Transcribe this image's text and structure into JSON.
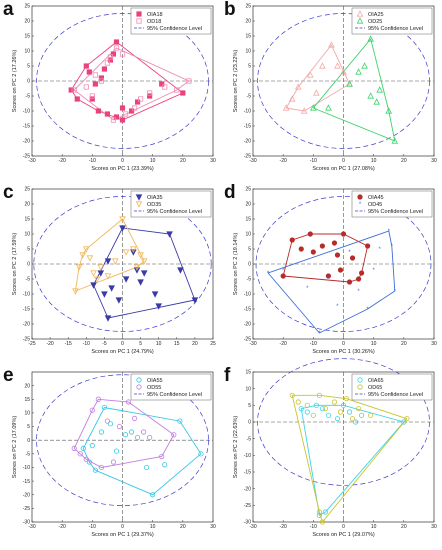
{
  "chart_data": [
    {
      "panel_label": "a",
      "type": "scatter",
      "xlabel": "Scores on PC 1 (23.39%)",
      "ylabel": "Scores on PC 2 (17.26%)",
      "xlim": [
        -30,
        30
      ],
      "ylim": [
        -25,
        25
      ],
      "xticks": [
        -30,
        -20,
        -10,
        0,
        10,
        20,
        30
      ],
      "yticks": [
        -25,
        -20,
        -15,
        -10,
        -5,
        0,
        5,
        10,
        15,
        20,
        25
      ],
      "ellipse": {
        "label": "95% Confidence Level",
        "rx": 28.5,
        "ry": 22.5
      },
      "legend_position": "top-right",
      "series": [
        {
          "name": "OIA18",
          "color": "#e8437e",
          "marker": "square-filled",
          "points": [
            [
              -17,
              -3
            ],
            [
              -15,
              -6
            ],
            [
              -12,
              5
            ],
            [
              -11,
              3
            ],
            [
              -10,
              -6
            ],
            [
              -9,
              -1
            ],
            [
              -8,
              -10
            ],
            [
              -5,
              -11
            ],
            [
              -4,
              7
            ],
            [
              -3,
              9
            ],
            [
              -2,
              13
            ],
            [
              -2,
              -12
            ],
            [
              0,
              -13
            ],
            [
              0,
              -9
            ],
            [
              3,
              -10
            ],
            [
              5,
              -7
            ],
            [
              9,
              -5
            ],
            [
              13,
              -1
            ],
            [
              20,
              -4
            ],
            [
              -6,
              4
            ],
            [
              -7,
              1
            ]
          ]
        },
        {
          "name": "OD18",
          "color": "#f08cb4",
          "marker": "square-open",
          "points": [
            [
              -16,
              -3
            ],
            [
              -12,
              -2
            ],
            [
              -10,
              -5
            ],
            [
              -7,
              0
            ],
            [
              -5,
              6
            ],
            [
              -4,
              8
            ],
            [
              -2,
              11
            ],
            [
              0,
              9
            ],
            [
              1,
              -11
            ],
            [
              4,
              -9
            ],
            [
              6,
              -6
            ],
            [
              9,
              -4
            ],
            [
              14,
              -2
            ],
            [
              18,
              -3
            ],
            [
              22,
              0
            ],
            [
              -3,
              -13
            ],
            [
              -9,
              2
            ]
          ]
        }
      ]
    },
    {
      "panel_label": "b",
      "type": "scatter",
      "xlabel": "Scores on PC 1 (27.08%)",
      "ylabel": "Scores on PC 2 (23.22%)",
      "xlim": [
        -30,
        30
      ],
      "ylim": [
        -25,
        25
      ],
      "xticks": [
        -30,
        -20,
        -10,
        0,
        10,
        20,
        30
      ],
      "yticks": [
        -25,
        -20,
        -15,
        -10,
        -5,
        0,
        5,
        10,
        15,
        20,
        25
      ],
      "ellipse": {
        "label": "95% Confidence Level",
        "rx": 28.5,
        "ry": 22.5
      },
      "legend_position": "top-right",
      "series": [
        {
          "name": "OIA25",
          "color": "#f2a9a9",
          "marker": "triangle-open",
          "points": [
            [
              -19,
              -9
            ],
            [
              -17,
              -6
            ],
            [
              -13,
              -10
            ],
            [
              -11,
              2
            ],
            [
              -7,
              5
            ],
            [
              -4,
              12
            ],
            [
              -2,
              5
            ],
            [
              0,
              3
            ],
            [
              2,
              -1
            ],
            [
              -9,
              -4
            ],
            [
              -15,
              -2
            ]
          ]
        },
        {
          "name": "OD25",
          "color": "#3dd36b",
          "marker": "triangle-open",
          "points": [
            [
              -10,
              -9
            ],
            [
              2,
              -1
            ],
            [
              5,
              3
            ],
            [
              7,
              5
            ],
            [
              9,
              -5
            ],
            [
              11,
              -7
            ],
            [
              12,
              -3
            ],
            [
              15,
              -10
            ],
            [
              17,
              -20
            ],
            [
              9,
              14
            ],
            [
              -5,
              -9
            ]
          ]
        }
      ]
    },
    {
      "panel_label": "c",
      "type": "scatter",
      "xlabel": "Scores on PC 1 (24.79%)",
      "ylabel": "Scores on PC 2 (17.59%)",
      "xlim": [
        -25,
        25
      ],
      "ylim": [
        -25,
        25
      ],
      "xticks": [
        -25,
        -20,
        -15,
        -10,
        -5,
        0,
        5,
        10,
        15,
        20,
        25
      ],
      "yticks": [
        -25,
        -20,
        -15,
        -10,
        -5,
        0,
        5,
        10,
        15,
        20,
        25
      ],
      "ellipse": {
        "label": "95% Confidence Level",
        "rx": 24.5,
        "ry": 22.5
      },
      "legend_position": "top-right",
      "series": [
        {
          "name": "OIA35",
          "color": "#3a3aa8",
          "marker": "triangle-down-filled",
          "points": [
            [
              -8,
              -7
            ],
            [
              -6,
              -3
            ],
            [
              -5,
              -10
            ],
            [
              -4,
              1
            ],
            [
              -3,
              -8
            ],
            [
              0,
              12
            ],
            [
              1,
              -5
            ],
            [
              3,
              4
            ],
            [
              4,
              -2
            ],
            [
              5,
              -6
            ],
            [
              6,
              -3
            ],
            [
              9,
              -10
            ],
            [
              10,
              -14
            ],
            [
              13,
              10
            ],
            [
              16,
              -2
            ],
            [
              20,
              -12
            ],
            [
              -4,
              -18
            ],
            [
              -1,
              -12
            ]
          ]
        },
        {
          "name": "OD35",
          "color": "#f0b85c",
          "marker": "triangle-down-open",
          "points": [
            [
              -13,
              -9
            ],
            [
              -12,
              -1
            ],
            [
              -10,
              5
            ],
            [
              -9,
              2
            ],
            [
              -8,
              -3
            ],
            [
              -7,
              -5
            ],
            [
              -4,
              -4
            ],
            [
              -2,
              1
            ],
            [
              0,
              15
            ],
            [
              1,
              4
            ],
            [
              3,
              5
            ],
            [
              4,
              -1
            ],
            [
              5,
              3
            ],
            [
              6,
              1
            ],
            [
              -11,
              3
            ],
            [
              -6,
              -1
            ]
          ]
        }
      ]
    },
    {
      "panel_label": "d",
      "type": "scatter",
      "xlabel": "Scores on PC 1 (30.26%)",
      "ylabel": "Scores on PC 2 (19.14%)",
      "xlim": [
        -30,
        30
      ],
      "ylim": [
        -25,
        25
      ],
      "xticks": [
        -30,
        -20,
        -10,
        0,
        10,
        20,
        30
      ],
      "yticks": [
        -25,
        -20,
        -15,
        -10,
        -5,
        0,
        5,
        10,
        15,
        20,
        25
      ],
      "ellipse": {
        "label": "95% Confidence Level",
        "rx": 29,
        "ry": 22.5
      },
      "legend_position": "top-right",
      "series": [
        {
          "name": "OIA45",
          "color": "#b82b2b",
          "marker": "circle-filled",
          "points": [
            [
              -20,
              -4
            ],
            [
              -17,
              8
            ],
            [
              -11,
              10
            ],
            [
              -10,
              4
            ],
            [
              -7,
              6
            ],
            [
              -5,
              -4
            ],
            [
              -3,
              7
            ],
            [
              -1,
              -2
            ],
            [
              0,
              10
            ],
            [
              2,
              -6
            ],
            [
              3,
              2
            ],
            [
              5,
              -5
            ],
            [
              6,
              -3
            ],
            [
              8,
              6
            ],
            [
              -14,
              5
            ],
            [
              -2,
              3
            ]
          ]
        },
        {
          "name": "OD45",
          "color": "#3b6fd8",
          "marker": "star",
          "points": [
            [
              -25,
              -3
            ],
            [
              -20,
              -2
            ],
            [
              -12,
              -8
            ],
            [
              -8,
              -23
            ],
            [
              -2,
              -14
            ],
            [
              2,
              4
            ],
            [
              5,
              -9
            ],
            [
              8,
              -15
            ],
            [
              10,
              -2
            ],
            [
              12,
              5
            ],
            [
              15,
              11
            ],
            [
              16,
              6
            ],
            [
              17,
              -9
            ],
            [
              -5,
              -5
            ]
          ]
        }
      ]
    },
    {
      "panel_label": "e",
      "type": "scatter",
      "xlabel": "Scores on PC 1 (29.37%)",
      "ylabel": "Scores on PC 2 (17.09%)",
      "xlim": [
        -30,
        30
      ],
      "ylim": [
        -30,
        25
      ],
      "xticks": [
        -30,
        -20,
        -10,
        0,
        10,
        20,
        30
      ],
      "yticks": [
        -30,
        -25,
        -20,
        -15,
        -10,
        -5,
        0,
        5,
        10,
        15,
        20
      ],
      "ellipse": {
        "label": "95% Confidence Level",
        "rx": 28.5,
        "ry": 24
      },
      "legend_position": "top-right",
      "series": [
        {
          "name": "OIA55",
          "color": "#38c6e8",
          "marker": "circle-open",
          "points": [
            [
              -11,
              -8
            ],
            [
              -10,
              -2
            ],
            [
              -9,
              -11
            ],
            [
              -7,
              3
            ],
            [
              -6,
              12
            ],
            [
              -4,
              6
            ],
            [
              -2,
              -4
            ],
            [
              1,
              2
            ],
            [
              3,
              3
            ],
            [
              5,
              1
            ],
            [
              8,
              -10
            ],
            [
              10,
              -20
            ],
            [
              14,
              -9
            ],
            [
              26,
              -5
            ],
            [
              19,
              7
            ],
            [
              -13,
              -3
            ]
          ]
        },
        {
          "name": "OD55",
          "color": "#c07ee0",
          "marker": "circle-open",
          "points": [
            [
              -16,
              -3
            ],
            [
              -14,
              -5
            ],
            [
              -12,
              -7
            ],
            [
              -10,
              11
            ],
            [
              -8,
              15
            ],
            [
              -5,
              7
            ],
            [
              -3,
              -8
            ],
            [
              -1,
              5
            ],
            [
              2,
              14
            ],
            [
              4,
              8
            ],
            [
              7,
              3
            ],
            [
              9,
              1
            ],
            [
              13,
              -6
            ],
            [
              17,
              2
            ],
            [
              -7,
              -10
            ]
          ]
        }
      ]
    },
    {
      "panel_label": "f",
      "type": "scatter",
      "xlabel": "Scores on PC 1 (29.07%)",
      "ylabel": "Scores on PC 2 (22.63%)",
      "xlim": [
        -30,
        30
      ],
      "ylim": [
        -30,
        15
      ],
      "xticks": [
        -30,
        -20,
        -10,
        0,
        10,
        20,
        30
      ],
      "yticks": [
        -30,
        -25,
        -20,
        -15,
        -10,
        -5,
        0,
        5,
        10,
        15
      ],
      "ellipse": {
        "label": "95% Confidence Level",
        "rx": 28.5,
        "ry": 19
      },
      "legend_position": "top-right",
      "series": [
        {
          "name": "OIA65",
          "color": "#3ed3e8",
          "marker": "circle-open",
          "points": [
            [
              -14,
              4
            ],
            [
              -12,
              3
            ],
            [
              -9,
              5
            ],
            [
              -7,
              4
            ],
            [
              -5,
              2
            ],
            [
              -2,
              1
            ],
            [
              0,
              5
            ],
            [
              2,
              3
            ],
            [
              4,
              0
            ],
            [
              6,
              2
            ],
            [
              -8,
              -28
            ],
            [
              20,
              0
            ],
            [
              -6,
              -27
            ]
          ]
        },
        {
          "name": "OD65",
          "color": "#c9c42b",
          "marker": "circle-open",
          "points": [
            [
              -17,
              8
            ],
            [
              -15,
              6
            ],
            [
              -12,
              5
            ],
            [
              -10,
              2
            ],
            [
              -8,
              8
            ],
            [
              -6,
              4
            ],
            [
              -3,
              6
            ],
            [
              -1,
              3
            ],
            [
              1,
              7
            ],
            [
              3,
              1
            ],
            [
              5,
              4
            ],
            [
              9,
              2
            ],
            [
              21,
              1
            ],
            [
              -7,
              -30
            ],
            [
              -8,
              -27
            ]
          ]
        }
      ]
    }
  ]
}
